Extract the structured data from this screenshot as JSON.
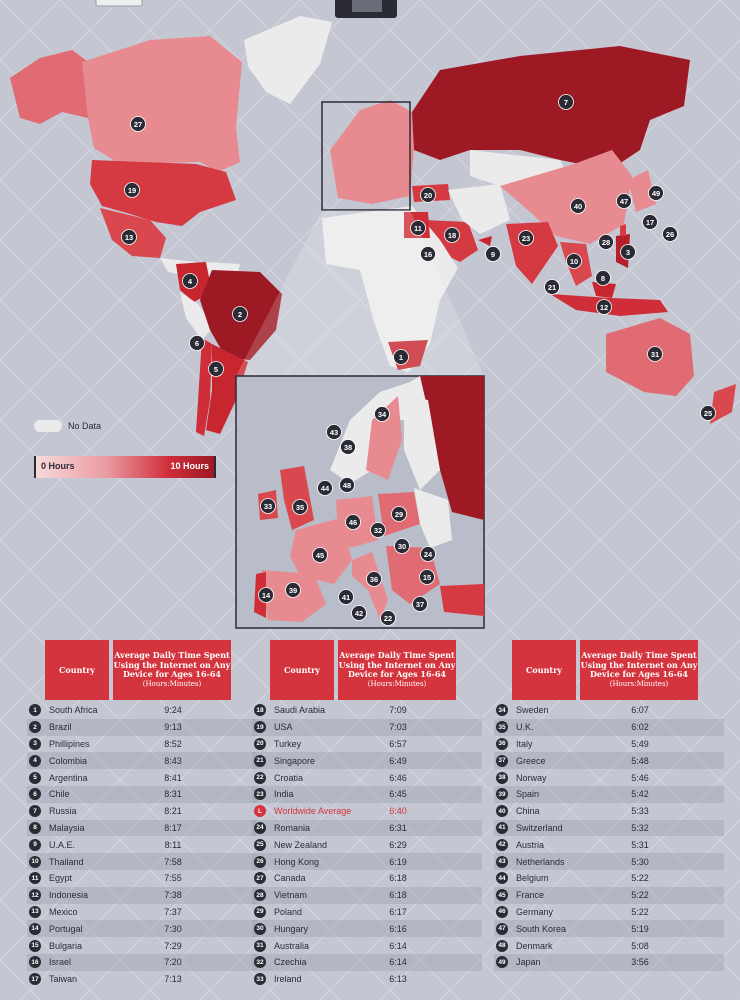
{
  "legend": {
    "no_data_label": "No Data",
    "min_label": "0 Hours",
    "max_label": "10 Hours"
  },
  "colors": {
    "background": "#c4c7d2",
    "no_data": "#ecebec",
    "low": "#f0b8bc",
    "mid": "#e06b72",
    "high": "#cf2d38",
    "max": "#9d1924",
    "marker": "#2b2b36",
    "header": "#d4343d"
  },
  "table": {
    "headers": {
      "country": "Country",
      "value_line1": "Average Daily Time Spent",
      "value_line2": "Using the Internet on Any",
      "value_line3": "Device for Ages 16-64",
      "value_unit": "(Hours:Minutes)"
    },
    "columns": [
      [
        {
          "rank": "1",
          "country": "South Africa",
          "time": "9:24"
        },
        {
          "rank": "2",
          "country": "Brazil",
          "time": "9:13"
        },
        {
          "rank": "3",
          "country": "Phillipines",
          "time": "8:52"
        },
        {
          "rank": "4",
          "country": "Colombia",
          "time": "8:43"
        },
        {
          "rank": "5",
          "country": "Argentina",
          "time": "8:41"
        },
        {
          "rank": "6",
          "country": "Chile",
          "time": "8:31"
        },
        {
          "rank": "7",
          "country": "Russia",
          "time": "8:21"
        },
        {
          "rank": "8",
          "country": "Malaysia",
          "time": "8:17"
        },
        {
          "rank": "9",
          "country": "U.A.E.",
          "time": "8:11"
        },
        {
          "rank": "10",
          "country": "Thailand",
          "time": "7:58"
        },
        {
          "rank": "11",
          "country": "Egypt",
          "time": "7:55"
        },
        {
          "rank": "12",
          "country": "Indonesia",
          "time": "7:38"
        },
        {
          "rank": "13",
          "country": "Mexico",
          "time": "7:37"
        },
        {
          "rank": "14",
          "country": "Portugal",
          "time": "7:30"
        },
        {
          "rank": "15",
          "country": "Bulgaria",
          "time": "7:29"
        },
        {
          "rank": "16",
          "country": "Israel",
          "time": "7:20"
        },
        {
          "rank": "17",
          "country": "Taiwan",
          "time": "7:13"
        }
      ],
      [
        {
          "rank": "18",
          "country": "Saudi Arabia",
          "time": "7:09"
        },
        {
          "rank": "19",
          "country": "USA",
          "time": "7:03"
        },
        {
          "rank": "20",
          "country": "Turkey",
          "time": "6:57"
        },
        {
          "rank": "21",
          "country": "Singapore",
          "time": "6:49"
        },
        {
          "rank": "22",
          "country": "Croatia",
          "time": "6:46"
        },
        {
          "rank": "23",
          "country": "India",
          "time": "6:45"
        },
        {
          "rank": "L",
          "country": "Worldwide Average",
          "time": "6:40",
          "highlight": true
        },
        {
          "rank": "24",
          "country": "Romania",
          "time": "6:31"
        },
        {
          "rank": "25",
          "country": "New Zealand",
          "time": "6:29"
        },
        {
          "rank": "26",
          "country": "Hong Kong",
          "time": "6:19"
        },
        {
          "rank": "27",
          "country": "Canada",
          "time": "6:18"
        },
        {
          "rank": "28",
          "country": "Vietnam",
          "time": "6:18"
        },
        {
          "rank": "29",
          "country": "Poland",
          "time": "6:17"
        },
        {
          "rank": "30",
          "country": "Hungary",
          "time": "6:16"
        },
        {
          "rank": "31",
          "country": "Australia",
          "time": "6:14"
        },
        {
          "rank": "32",
          "country": "Czechia",
          "time": "6:14"
        },
        {
          "rank": "33",
          "country": "Ireland",
          "time": "6:13"
        }
      ],
      [
        {
          "rank": "34",
          "country": "Sweden",
          "time": "6:07"
        },
        {
          "rank": "35",
          "country": "U.K.",
          "time": "6:02"
        },
        {
          "rank": "36",
          "country": "Italy",
          "time": "5:49"
        },
        {
          "rank": "37",
          "country": "Greece",
          "time": "5:48"
        },
        {
          "rank": "38",
          "country": "Norway",
          "time": "5:46"
        },
        {
          "rank": "39",
          "country": "Spain",
          "time": "5:42"
        },
        {
          "rank": "40",
          "country": "China",
          "time": "5:33"
        },
        {
          "rank": "41",
          "country": "Switzerland",
          "time": "5:32"
        },
        {
          "rank": "42",
          "country": "Austria",
          "time": "5:31"
        },
        {
          "rank": "43",
          "country": "Netherlands",
          "time": "5:30"
        },
        {
          "rank": "44",
          "country": "Belgium",
          "time": "5:22"
        },
        {
          "rank": "45",
          "country": "France",
          "time": "5:22"
        },
        {
          "rank": "46",
          "country": "Germany",
          "time": "5:22"
        },
        {
          "rank": "47",
          "country": "South Korea",
          "time": "5:19"
        },
        {
          "rank": "48",
          "country": "Denmark",
          "time": "5:08"
        },
        {
          "rank": "49",
          "country": "Japan",
          "time": "3:56"
        }
      ]
    ]
  },
  "markers": {
    "world": [
      "1",
      "2",
      "3",
      "4",
      "5",
      "6",
      "7",
      "8",
      "9",
      "10",
      "11",
      "12",
      "13",
      "16",
      "17",
      "18",
      "19",
      "20",
      "21",
      "23",
      "25",
      "26",
      "27",
      "28",
      "31",
      "40",
      "47",
      "49"
    ],
    "europe": [
      "14",
      "15",
      "22",
      "24",
      "29",
      "30",
      "32",
      "33",
      "34",
      "35",
      "36",
      "37",
      "38",
      "39",
      "41",
      "42",
      "43",
      "44",
      "45",
      "46",
      "48"
    ]
  }
}
